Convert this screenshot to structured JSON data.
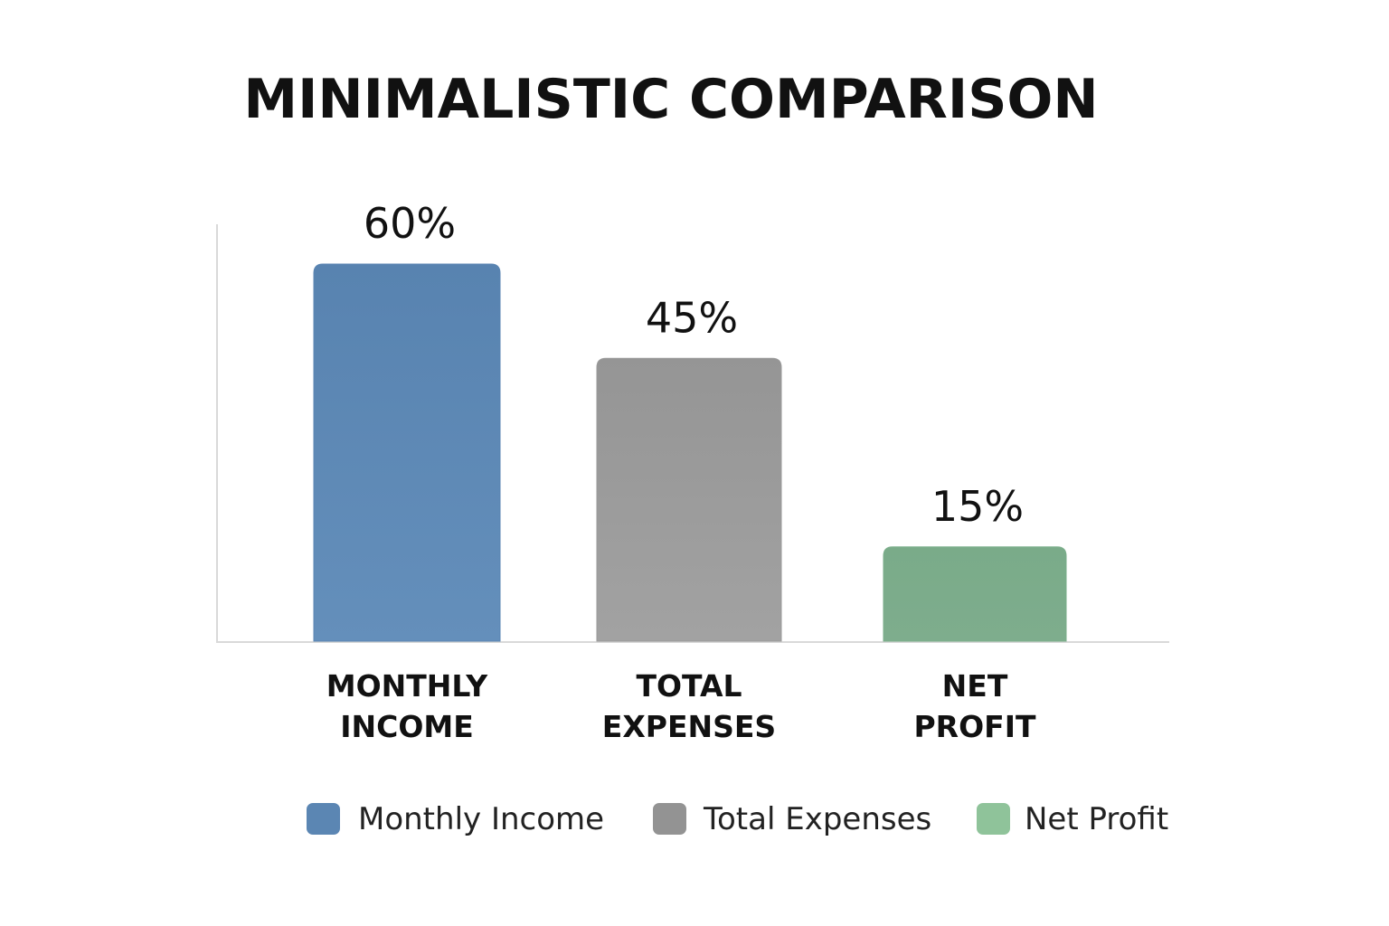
{
  "chart_data": {
    "type": "bar",
    "title": "MINIMALISTIC COMPARISON",
    "categories": [
      "MONTHLY INCOME",
      "TOTAL EXPENSES",
      "NET PROFIT"
    ],
    "category_lines": [
      [
        "MONTHLY",
        "INCOME"
      ],
      [
        "TOTAL",
        "EXPENSES"
      ],
      [
        "NET",
        "PROFIT"
      ]
    ],
    "values": [
      60,
      45,
      15
    ],
    "value_labels": [
      "60%",
      "45%",
      "15%"
    ],
    "unit": "%",
    "colors": [
      "#5b86b3",
      "#9a9a9a",
      "#7aae8a"
    ],
    "legend": {
      "position": "bottom",
      "entries": [
        {
          "label": "Monthly Income",
          "color": "#5b86b3"
        },
        {
          "label": "Total Expenses",
          "color": "#939393"
        },
        {
          "label": "Net Profit",
          "color": "#8fc39a"
        }
      ]
    },
    "grid": false,
    "xlabel": "",
    "ylabel": ""
  }
}
